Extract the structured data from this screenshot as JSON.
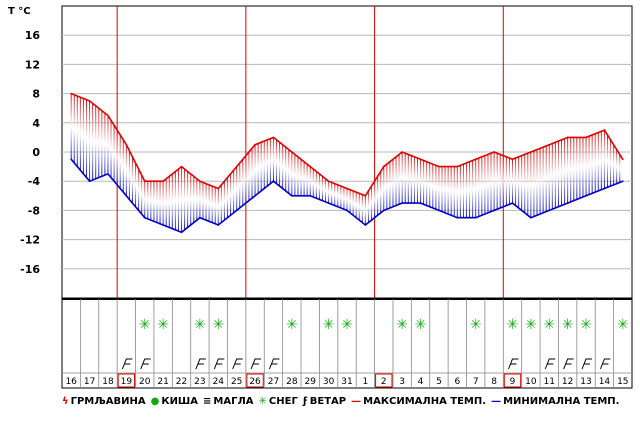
{
  "chart_data": {
    "type": "line",
    "title": "",
    "ylabel": "T °C",
    "xlabel": "",
    "ylim": [
      -20,
      20
    ],
    "yticks": [
      16,
      12,
      8,
      4,
      0,
      -4,
      -8,
      -12,
      -16
    ],
    "grid": true,
    "legend_position": "bottom",
    "x": [
      "16",
      "17",
      "18",
      "19",
      "20",
      "21",
      "22",
      "23",
      "24",
      "25",
      "26",
      "27",
      "28",
      "29",
      "30",
      "31",
      "1",
      "2",
      "3",
      "4",
      "5",
      "6",
      "7",
      "8",
      "9",
      "10",
      "11",
      "12",
      "13",
      "14",
      "15"
    ],
    "highlighted_days": [
      "19",
      "26",
      "2",
      "9"
    ],
    "month_separator_after": "31",
    "series": [
      {
        "name": "МАКСИМАЛНА ТЕМП.",
        "color": "#e00000",
        "values": [
          8,
          7,
          5,
          1,
          -4,
          -4,
          -2,
          -4,
          -5,
          -2,
          1,
          2,
          0,
          -2,
          -4,
          -5,
          -6,
          -2,
          0,
          -1,
          -2,
          -2,
          -1,
          0,
          -1,
          0,
          1,
          2,
          2,
          3,
          -1
        ]
      },
      {
        "name": "МИНИМАЛНА ТЕМП.",
        "color": "#0000cc",
        "values": [
          -1,
          -4,
          -3,
          -6,
          -9,
          -10,
          -11,
          -9,
          -10,
          -8,
          -6,
          -4,
          -6,
          -6,
          -7,
          -8,
          -10,
          -8,
          -7,
          -7,
          -8,
          -9,
          -9,
          -8,
          -7,
          -9,
          -8,
          -7,
          -6,
          -5,
          -4
        ]
      }
    ],
    "snow_days": [
      "20",
      "21",
      "23",
      "24",
      "28",
      "30",
      "31",
      "3",
      "4",
      "7",
      "9",
      "10",
      "11",
      "12",
      "13",
      "15"
    ],
    "wind_days": [
      "19",
      "20",
      "23",
      "24",
      "25",
      "26",
      "27",
      "9",
      "11",
      "12",
      "13",
      "14"
    ],
    "legend": [
      {
        "id": "thunder",
        "symbol": "ϟ",
        "color": "#e00000",
        "label": "ГРМЉАВИНА"
      },
      {
        "id": "rain",
        "symbol": "●",
        "color": "#11aa11",
        "label": "КИША"
      },
      {
        "id": "fog",
        "symbol": "≡",
        "color": "#000000",
        "label": "МАГЛА"
      },
      {
        "id": "snow",
        "symbol": "✳",
        "color": "#11aa11",
        "label": "СНЕГ"
      },
      {
        "id": "wind",
        "symbol": "ϝ",
        "color": "#000000",
        "label": "ВЕТАР"
      },
      {
        "id": "max",
        "symbol": "—",
        "color": "#e00000",
        "label": "МАКСИМАЛНА ТЕМП."
      },
      {
        "id": "min",
        "symbol": "—",
        "color": "#0000cc",
        "label": "МИНИМАЛНА ТЕМП."
      }
    ]
  }
}
